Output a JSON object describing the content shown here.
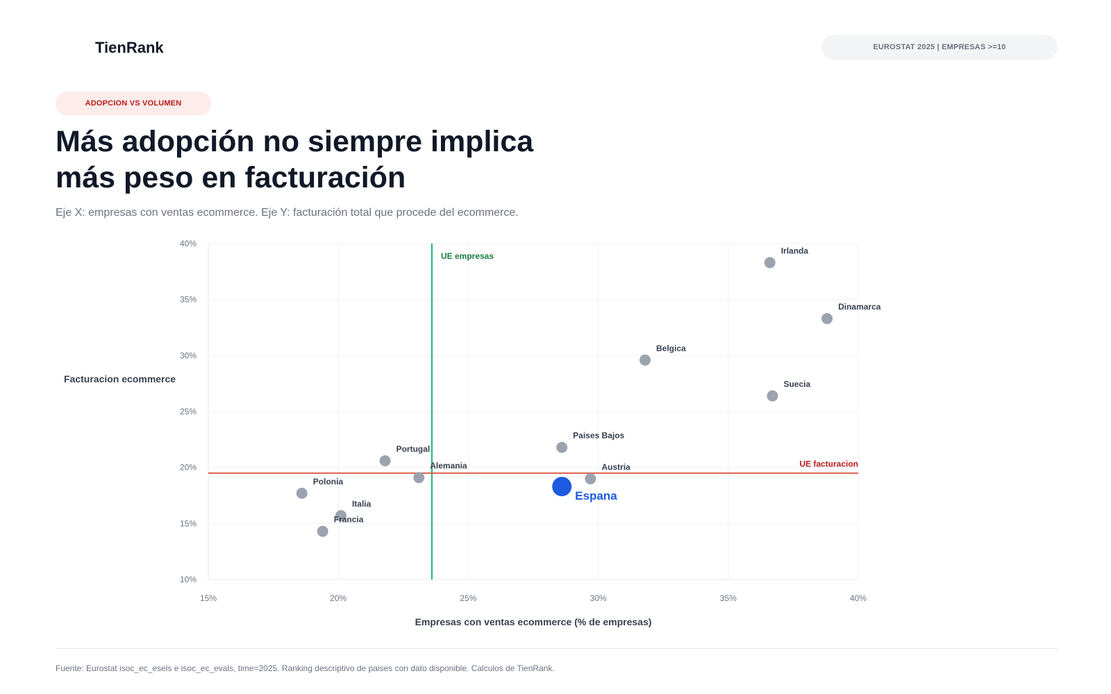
{
  "header": {
    "brand": "TienRank",
    "source_pill": "EUROSTAT 2025 | EMPRESAS >=10"
  },
  "section": {
    "tag": "ADOPCION VS VOLUMEN",
    "title": "Más adopción no siempre implica más peso en facturación",
    "subtitle": "Eje X: empresas con ventas ecommerce. Eje Y: facturación total que procede del ecommerce."
  },
  "footer": {
    "note": "Fuente: Eurostat isoc_ec_esels e isoc_ec_evals, time=2025. Ranking descriptivo de paises con dato disponible. Calculos de TienRank."
  },
  "colors": {
    "point": "#9ca3af",
    "highlight": "#1d5be0",
    "eu_companies_line": "#22b573",
    "eu_revenue_line": "#e05a4a",
    "eu_companies_label": "#15803d",
    "eu_revenue_label": "#b91c1c"
  },
  "chart_data": {
    "type": "scatter",
    "xlabel": "Empresas con ventas ecommerce (% de empresas)",
    "ylabel": "Facturacion ecommerce",
    "xlim": [
      15,
      40
    ],
    "ylim": [
      10,
      40
    ],
    "xticks": [
      "15%",
      "20%",
      "25%",
      "30%",
      "35%",
      "40%"
    ],
    "yticks": [
      "10%",
      "15%",
      "20%",
      "25%",
      "30%",
      "35%",
      "40%"
    ],
    "grid": true,
    "reference_lines": [
      {
        "axis": "x",
        "value": 23.6,
        "label": "UE empresas"
      },
      {
        "axis": "y",
        "value": 19.5,
        "label": "UE facturacion"
      }
    ],
    "points": [
      {
        "label": "Irlanda",
        "x": 36.6,
        "y": 38.3
      },
      {
        "label": "Dinamarca",
        "x": 38.8,
        "y": 33.3
      },
      {
        "label": "Belgica",
        "x": 31.8,
        "y": 29.6
      },
      {
        "label": "Suecia",
        "x": 36.7,
        "y": 26.4
      },
      {
        "label": "Paises Bajos",
        "x": 28.6,
        "y": 21.8
      },
      {
        "label": "Austria",
        "x": 29.7,
        "y": 19.0
      },
      {
        "label": "Portugal",
        "x": 21.8,
        "y": 20.6
      },
      {
        "label": "Alemania",
        "x": 23.1,
        "y": 19.1
      },
      {
        "label": "Polonia",
        "x": 18.6,
        "y": 17.7
      },
      {
        "label": "Italia",
        "x": 20.1,
        "y": 15.7
      },
      {
        "label": "Francia",
        "x": 19.4,
        "y": 14.3
      },
      {
        "label": "Espana",
        "x": 28.6,
        "y": 18.3,
        "highlight": true
      }
    ]
  }
}
